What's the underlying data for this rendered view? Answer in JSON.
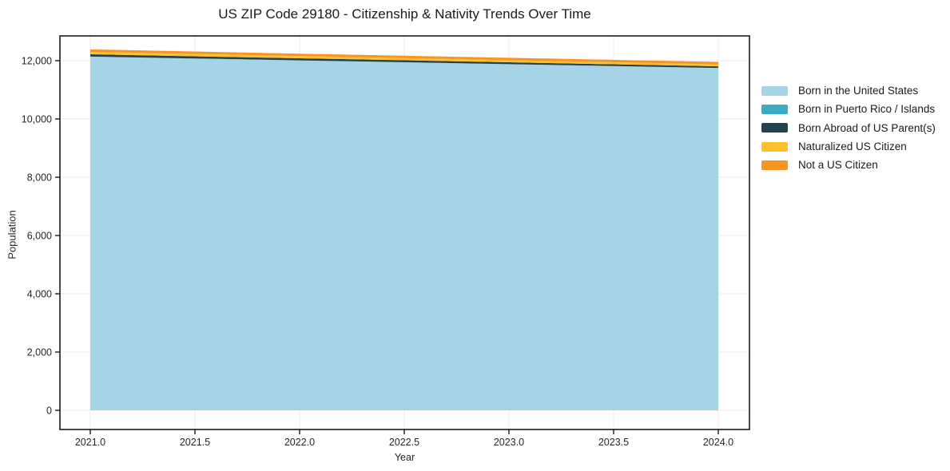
{
  "title": "US ZIP Code 29180 - Citizenship & Nativity Trends Over Time",
  "chart_data": {
    "type": "area",
    "stacked": true,
    "title": "US ZIP Code 29180 - Citizenship & Nativity Trends Over Time",
    "xlabel": "Year",
    "ylabel": "Population",
    "x": [
      2021,
      2022,
      2023,
      2024
    ],
    "series": [
      {
        "name": "Born in the United States",
        "color": "#a6d4e7",
        "values": [
          12140,
          12010,
          11880,
          11750
        ]
      },
      {
        "name": "Born in Puerto Rico / Islands",
        "color": "#3babc4",
        "values": [
          0,
          0,
          0,
          0
        ]
      },
      {
        "name": "Born Abroad of US Parent(s)",
        "color": "#24424f",
        "values": [
          80,
          72,
          64,
          55
        ]
      },
      {
        "name": "Naturalized US Citizen",
        "color": "#fcc12d",
        "values": [
          80,
          77,
          73,
          70
        ]
      },
      {
        "name": "Not a US Citizen",
        "color": "#f89423",
        "values": [
          85,
          83,
          82,
          80
        ]
      }
    ],
    "totals": [
      12385,
      12242,
      12099,
      11955
    ],
    "x_ticks": [
      "2021.0",
      "2021.5",
      "2022.0",
      "2022.5",
      "2023.0",
      "2023.5",
      "2024.0"
    ],
    "x_tick_values": [
      2021,
      2021.5,
      2022,
      2022.5,
      2023,
      2023.5,
      2024
    ],
    "y_ticks": [
      "0",
      "2,000",
      "4,000",
      "6,000",
      "8,000",
      "10,000",
      "12,000"
    ],
    "y_tick_values": [
      0,
      2000,
      4000,
      6000,
      8000,
      10000,
      12000
    ],
    "xlim": [
      2020.855,
      2024.149
    ],
    "ylim": [
      -657,
      12849
    ],
    "grid": true,
    "grid_color": "#ebebee",
    "spine_color": "#1a1a1a",
    "legend_position": "right"
  }
}
